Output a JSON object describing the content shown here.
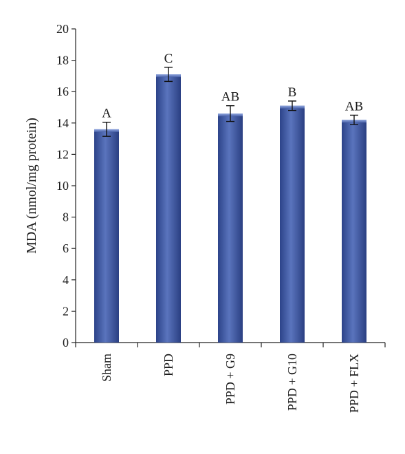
{
  "chart_data": {
    "type": "bar",
    "title": "",
    "xlabel": "",
    "ylabel": "MDA (nmol/mg protein)",
    "ylim": [
      0,
      20
    ],
    "yticks": [
      "0",
      "2",
      "4",
      "6",
      "8",
      "10",
      "12",
      "14",
      "16",
      "18",
      "20"
    ],
    "categories": [
      "Sham",
      "PPD",
      "PPD + G9",
      "PPD + G10",
      "PPD + FLX"
    ],
    "values": [
      13.6,
      17.1,
      14.6,
      15.1,
      14.2
    ],
    "errors": [
      0.45,
      0.45,
      0.5,
      0.3,
      0.3
    ],
    "significance_labels": [
      "A",
      "C",
      "AB",
      "B",
      "AB"
    ],
    "grid": false,
    "bar_color": "#4a62a8"
  }
}
